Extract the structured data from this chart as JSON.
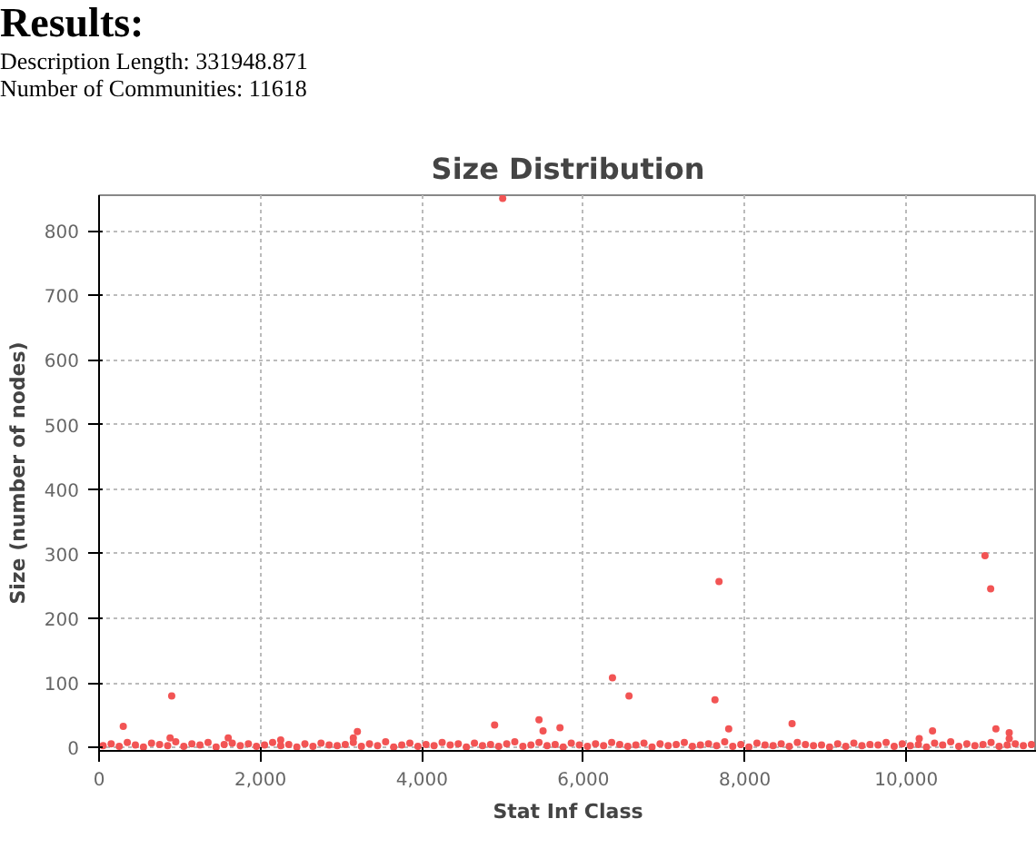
{
  "chart_data": {
    "type": "scatter",
    "title": "Size Distribution",
    "xlabel": "Stat Inf Class",
    "ylabel": "Size (number of nodes)",
    "annotations": [
      "Results:",
      "Description Length: 331948.871",
      "Number of Communities: 11618"
    ],
    "xlim": [
      0,
      11618
    ],
    "ylim": [
      -5,
      855
    ],
    "xticks": [
      {
        "value": 0,
        "label": "0"
      },
      {
        "value": 2000,
        "label": "2,000"
      },
      {
        "value": 4000,
        "label": "4,000"
      },
      {
        "value": 6000,
        "label": "6,000"
      },
      {
        "value": 8000,
        "label": "8,000"
      },
      {
        "value": 10000,
        "label": "10,000"
      }
    ],
    "yticks": [
      0,
      100,
      200,
      300,
      400,
      500,
      600,
      700,
      800
    ],
    "grid": true,
    "marker": "circle",
    "series": [
      {
        "color": "#f25454",
        "x": [
          50,
          150,
          250,
          350,
          450,
          550,
          650,
          750,
          850,
          950,
          1050,
          1150,
          1250,
          1350,
          1450,
          1550,
          1650,
          1750,
          1850,
          1950,
          2050,
          2150,
          2250,
          2350,
          2450,
          2550,
          2650,
          2750,
          2850,
          2950,
          3050,
          3150,
          3250,
          3350,
          3450,
          3550,
          3650,
          3750,
          3850,
          3950,
          4050,
          4150,
          4250,
          4350,
          4450,
          4550,
          4650,
          4750,
          4850,
          4950,
          5050,
          5150,
          5250,
          5350,
          5450,
          5550,
          5650,
          5750,
          5850,
          5950,
          6050,
          6150,
          6250,
          6350,
          6450,
          6550,
          6650,
          6750,
          6850,
          6950,
          7050,
          7150,
          7250,
          7350,
          7450,
          7550,
          7650,
          7750,
          7850,
          7950,
          8050,
          8150,
          8250,
          8350,
          8450,
          8550,
          8650,
          8750,
          8850,
          8950,
          9050,
          9150,
          9250,
          9350,
          9450,
          9550,
          9650,
          9750,
          9850,
          9950,
          10050,
          10150,
          10250,
          10350,
          10450,
          10550,
          10650,
          10750,
          10850,
          10950,
          11050,
          11150,
          11250,
          11350,
          11450,
          11550,
          300,
          900,
          880,
          1600,
          2250,
          3150,
          3200,
          4900,
          5000,
          5450,
          5500,
          5710,
          6360,
          6565,
          7630,
          7680,
          7800,
          8585,
          10160,
          10325,
          10975,
          11045,
          11110,
          11275,
          11275
        ],
        "values": [
          3,
          6,
          2,
          8,
          4,
          1,
          7,
          5,
          3,
          9,
          2,
          6,
          4,
          8,
          1,
          5,
          7,
          3,
          6,
          2,
          4,
          8,
          3,
          5,
          1,
          6,
          2,
          7,
          4,
          3,
          5,
          8,
          2,
          6,
          3,
          9,
          1,
          4,
          7,
          2,
          5,
          3,
          8,
          4,
          6,
          1,
          7,
          3,
          5,
          2,
          6,
          9,
          2,
          4,
          8,
          3,
          5,
          1,
          7,
          4,
          2,
          6,
          3,
          8,
          5,
          2,
          4,
          7,
          1,
          6,
          3,
          5,
          8,
          2,
          4,
          6,
          3,
          9,
          2,
          5,
          1,
          7,
          4,
          3,
          6,
          2,
          8,
          5,
          3,
          4,
          1,
          6,
          2,
          7,
          3,
          5,
          4,
          8,
          2,
          6,
          3,
          5,
          1,
          7,
          4,
          9,
          2,
          6,
          3,
          5,
          8,
          2,
          4,
          6,
          3,
          5,
          33,
          80,
          15,
          15,
          12,
          15,
          25,
          35,
          850,
          43,
          26,
          31,
          108,
          80,
          74,
          257,
          29,
          37,
          14,
          26,
          297,
          246,
          29,
          23,
          14
        ]
      }
    ]
  }
}
